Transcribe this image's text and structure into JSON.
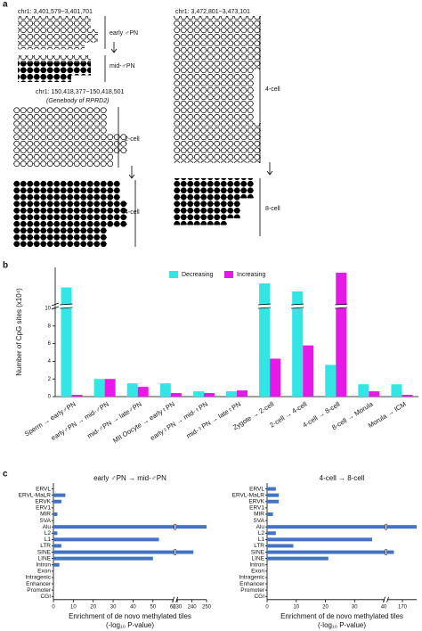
{
  "panel_labels": [
    "a",
    "b",
    "c"
  ],
  "panel_a": {
    "left_top_locus": "chr1: 3,401,579~3,401,701",
    "left_top_stage1": "early ♂PN",
    "left_top_stage2": "mid-♂PN",
    "left_bottom_locus": "chr1: 150,418,377~150,418,501",
    "left_bottom_note": "(Genebody of RPRD2)",
    "left_bottom_stage1": "2-cell",
    "left_bottom_stage2": "4-cell",
    "right_locus": "chr1: 3,472,801~3,473,101",
    "right_stage1": "4-cell",
    "right_stage2": "8-cell"
  },
  "chart_data": [
    {
      "type": "bar",
      "ylabel": "Number of CpG sites (x10⁴)",
      "categories": [
        "Sperm → early♂PN",
        "early♂PN → mid-♂PN",
        "mid-♂PN → late♂PN",
        "MII Oocyte → early♀PN",
        "early♀PN → mid-♀PN",
        "mid-♀PN → late♀PN",
        "Zygote → 2-cell",
        "2-cell → 4-cell",
        "4-cell → 8-cell",
        "8-cell → Morula",
        "Morula → ICM"
      ],
      "series": [
        {
          "name": "Decreasing",
          "color": "#33e6e6",
          "values": [
            25,
            2.0,
            1.5,
            1.5,
            0.6,
            0.6,
            28,
            22,
            3.6,
            1.4,
            1.4
          ]
        },
        {
          "name": "Increasing",
          "color": "#e619e6",
          "values": [
            0.2,
            2.0,
            1.1,
            0.4,
            0.4,
            0.7,
            4.3,
            5.8,
            36,
            0.6,
            0.2
          ]
        }
      ],
      "ylim": [
        0,
        40
      ],
      "axis_break": [
        10,
        12
      ],
      "yticks": [
        0,
        2,
        4,
        6,
        8,
        10
      ],
      "legend": "top"
    },
    {
      "type": "hbar",
      "title": "early ♂PN → mid-♂PN",
      "xlabel": "Enrichment of de novo methylated tiles",
      "xlabel2": "(-log₁₀ P-value)",
      "categories": [
        "ERVL",
        "ERVL-MaLR",
        "ERVK",
        "ERV1",
        "MIR",
        "SVA",
        "Alu",
        "L2",
        "L1",
        "LTR",
        "SINE",
        "LINE",
        "Intron",
        "Exon",
        "Intragenic",
        "Enhancer",
        "Promoter",
        "CGI"
      ],
      "values": [
        0,
        6,
        4,
        0,
        2,
        0,
        250,
        2,
        53,
        4,
        241,
        50,
        3,
        0,
        0,
        0,
        0,
        0
      ],
      "color": "#4472c4",
      "xlim": [
        0,
        250
      ],
      "axis_break": [
        60,
        230
      ],
      "xticks": [
        0,
        10,
        20,
        30,
        40,
        50,
        60,
        230,
        240,
        250
      ]
    },
    {
      "type": "hbar",
      "title": "4-cell → 8-cell",
      "xlabel": "Enrichment of de novo methylated tiles",
      "xlabel2": "(-log₁₀ P-value)",
      "categories": [
        "ERVL",
        "ERVL-MaLR",
        "ERVK",
        "ERV1",
        "MIR",
        "SVA",
        "Alu",
        "L2",
        "L1",
        "LTR",
        "SINE",
        "LINE",
        "Intron",
        "Exon",
        "Intragenic",
        "Enhancer",
        "Promoter",
        "CGI"
      ],
      "values": [
        3,
        4,
        4,
        0,
        2,
        0,
        175,
        3,
        36,
        9,
        167,
        21,
        0,
        0,
        0,
        0,
        0,
        0
      ],
      "color": "#4472c4",
      "xlim": [
        0,
        175
      ],
      "axis_break": [
        40,
        165
      ],
      "xticks": [
        0,
        10,
        20,
        30,
        40,
        170
      ]
    }
  ]
}
